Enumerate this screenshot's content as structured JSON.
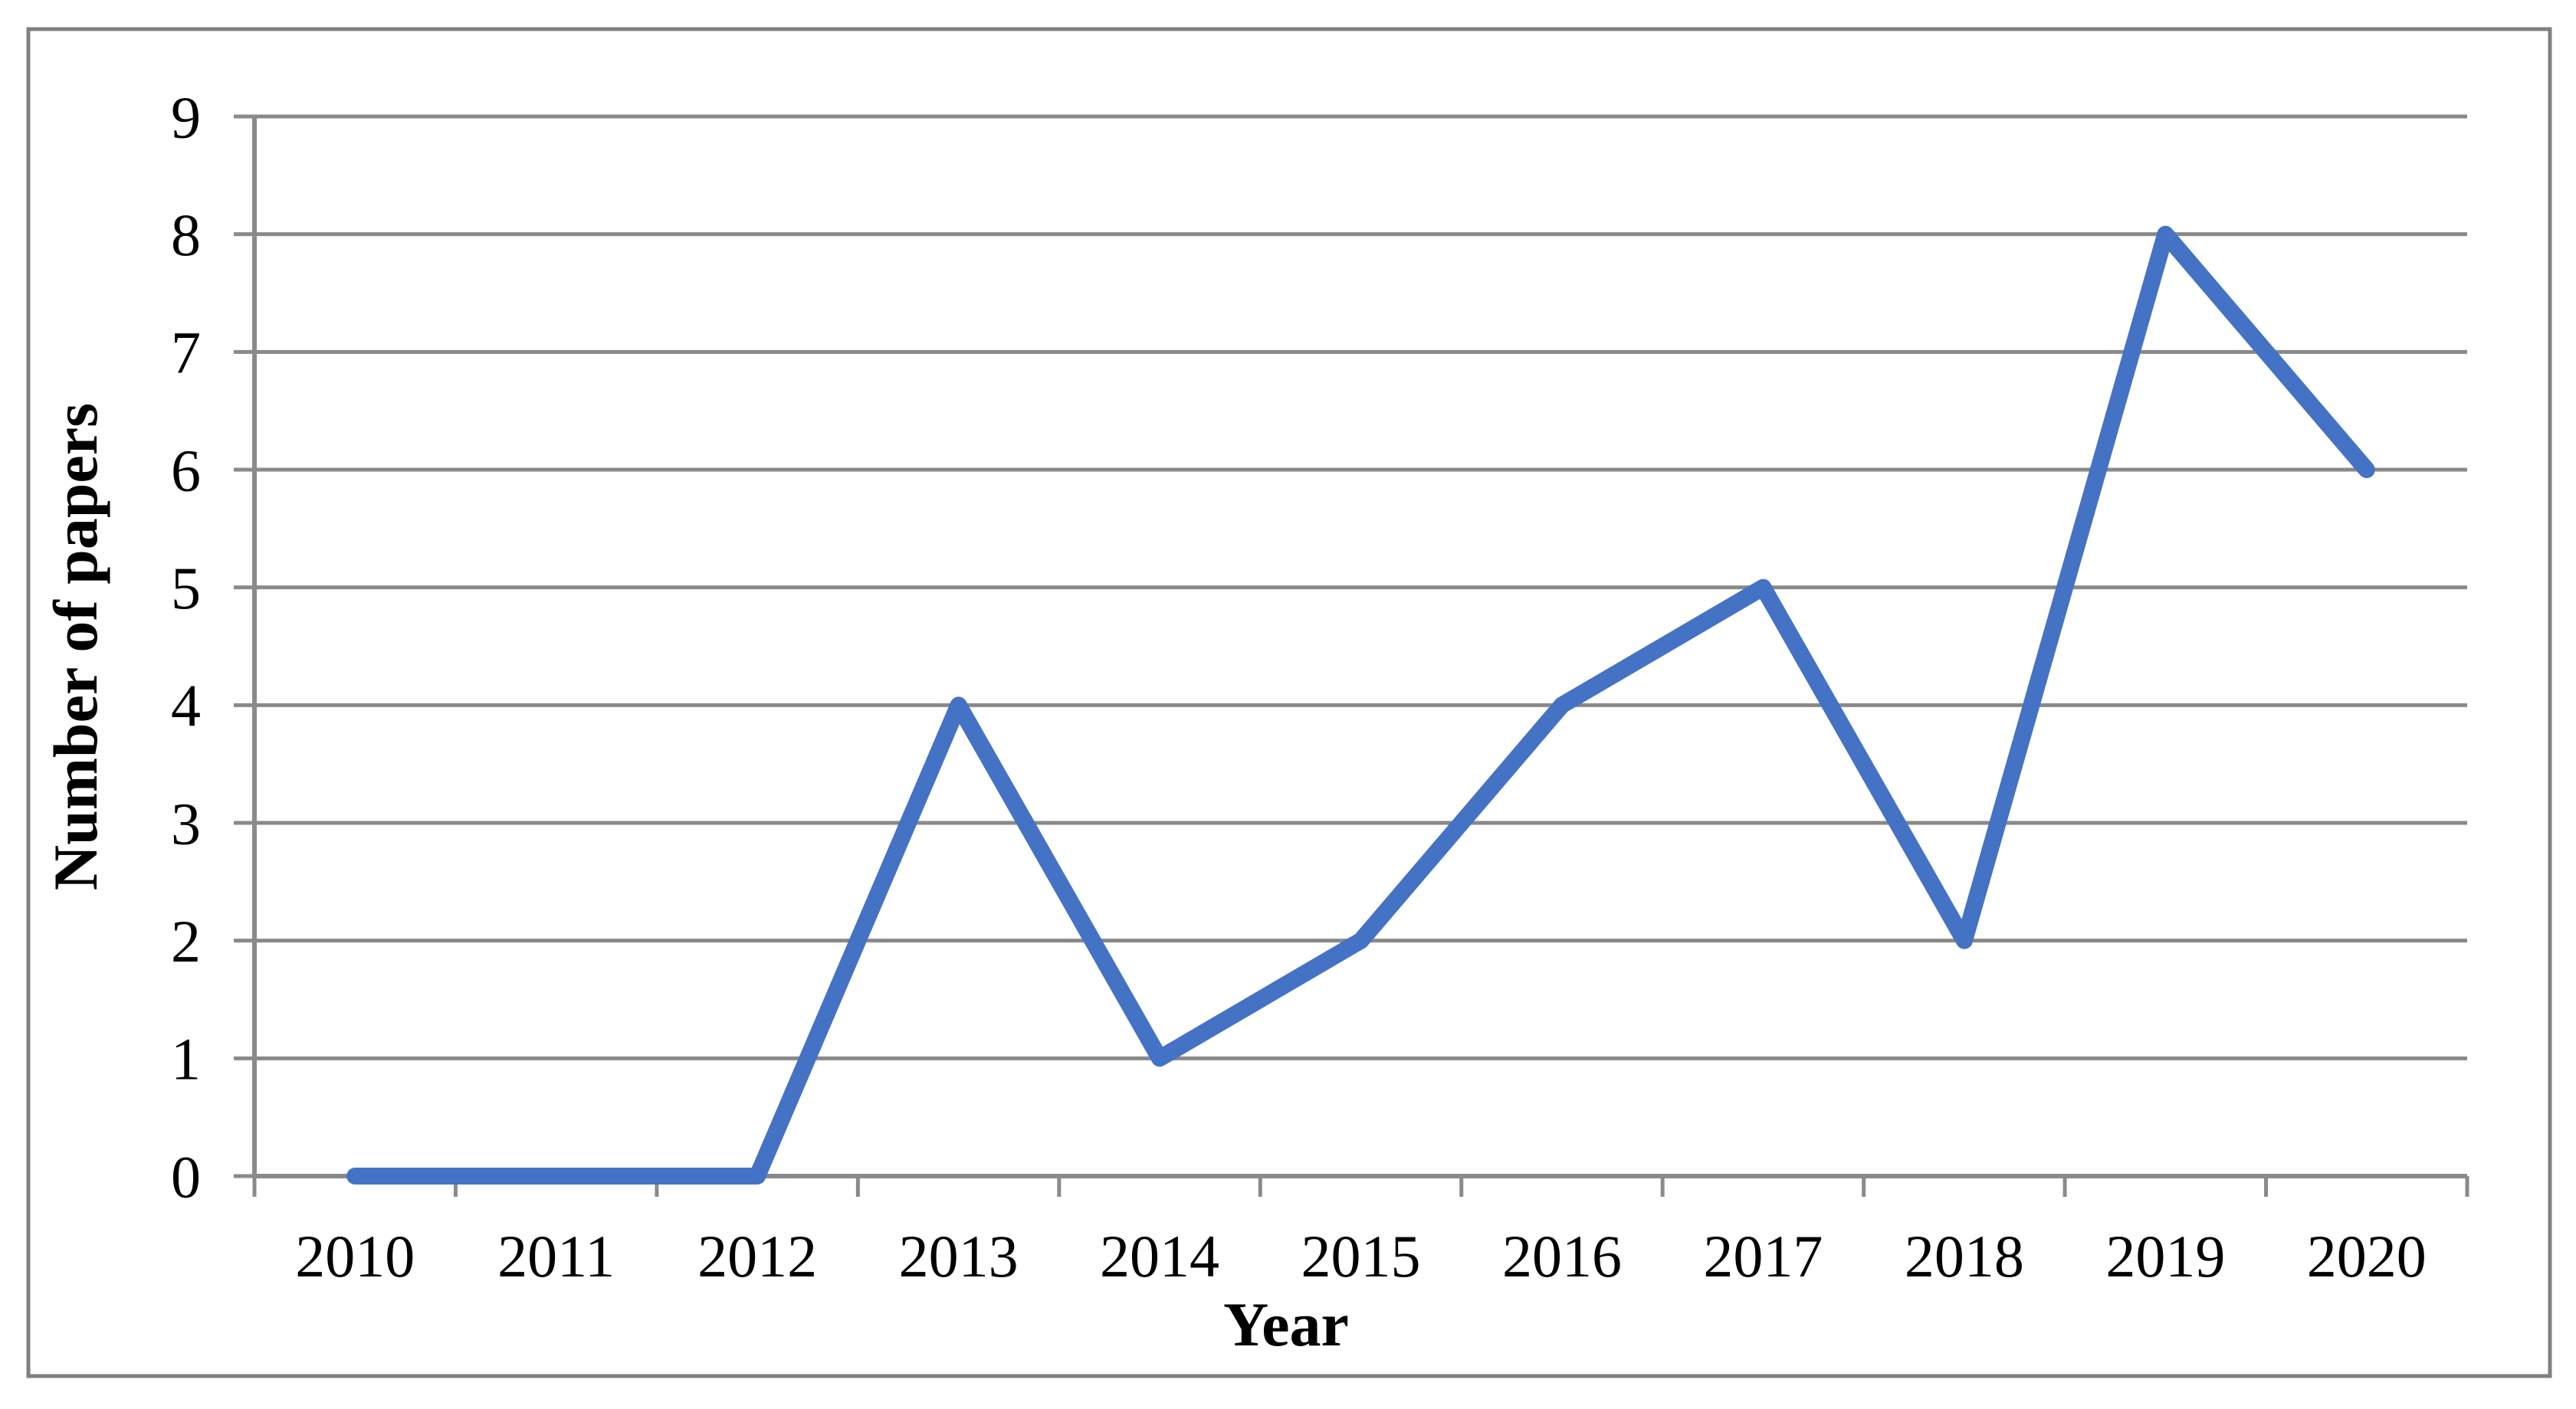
{
  "chart_data": {
    "type": "line",
    "title": "",
    "categories": [
      "2010",
      "2011",
      "2012",
      "2013",
      "2014",
      "2015",
      "2016",
      "2017",
      "2018",
      "2019",
      "2020"
    ],
    "series": [
      {
        "name": "Number of papers",
        "values": [
          0,
          0,
          0,
          4,
          1,
          2,
          4,
          5,
          2,
          8,
          6
        ]
      }
    ],
    "xlabel": "Year",
    "ylabel": "Number of papers",
    "ylim": [
      0,
      9
    ],
    "yticks": [
      0,
      1,
      2,
      3,
      4,
      5,
      6,
      7,
      8,
      9
    ],
    "grid": "horizontal",
    "legend_position": "none",
    "colors": {
      "line": "#4472C4",
      "gridline": "#898989",
      "axis": "#8A8A8A",
      "border": "#808080",
      "text": "#000000",
      "background": "#FFFFFF"
    }
  }
}
